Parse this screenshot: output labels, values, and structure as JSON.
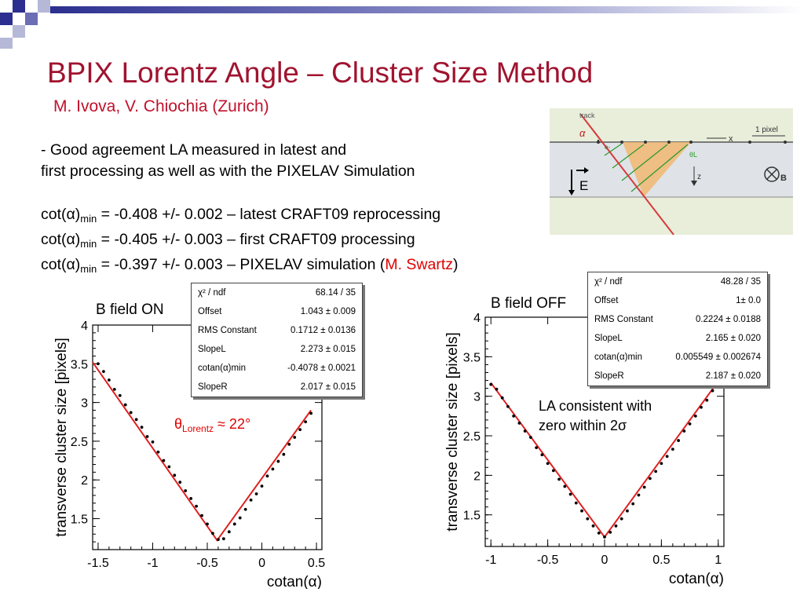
{
  "slide": {
    "title": "BPIX Lorentz Angle – Cluster Size Method",
    "subtitle": "M. Ivova, V. Chiochia (Zurich)",
    "bullet_line1": "- Good agreement LA measured in latest and",
    "bullet_line2": "first processing as well as with the PIXELAV Simulation",
    "results": [
      {
        "lhs": "cot(α)",
        "sub": "min",
        "rhs": " = -0.408 +/- 0.002 – latest CRAFT09 reprocessing"
      },
      {
        "lhs": "cot(α)",
        "sub": "min",
        "rhs": " = -0.405 +/- 0.003 – first CRAFT09 processing"
      },
      {
        "lhs": "cot(α)",
        "sub": "min",
        "rhs": " = -0.397 +/- 0.003 – PIXELAV simulation ("
      }
    ],
    "author_credit": "M. Swartz",
    "closing_paren": ")",
    "colors": {
      "title": "#a0132f",
      "accent_red": "#e00000",
      "fit_line": "#e02020",
      "header_blue": "#3a3ea8"
    }
  },
  "diagram": {
    "track_label": "track",
    "alpha_label": "α",
    "pixel_label": "1 pixel",
    "x_label": "x",
    "z_label": "z",
    "theta_label": "θL",
    "electron_label": "e-",
    "e_field_label": "E",
    "b_field_label": "B"
  },
  "left_plot": {
    "header": "B field ON",
    "annotation_theta": "θ",
    "annotation_sub": "Lorentz",
    "annotation_rest": " ≈ 22°",
    "stats": [
      {
        "name": "χ² / ndf",
        "value": "68.14 / 35"
      },
      {
        "name": "Offset",
        "value": "1.043 ± 0.009"
      },
      {
        "name": "RMS Constant",
        "value": "0.1712 ± 0.0136"
      },
      {
        "name": "SlopeL",
        "value": "2.273 ± 0.015"
      },
      {
        "name": "cotan(α)min",
        "value": "-0.4078 ± 0.0021"
      },
      {
        "name": "SlopeR",
        "value": "2.017 ± 0.015"
      }
    ]
  },
  "right_plot": {
    "header": "B field OFF",
    "note_line1": "LA consistent with",
    "note_line2": "zero within 2σ",
    "stats": [
      {
        "name": "χ² / ndf",
        "value": "48.28 / 35"
      },
      {
        "name": "Offset",
        "value": "1± 0.0"
      },
      {
        "name": "RMS Constant",
        "value": "0.2224 ± 0.0188"
      },
      {
        "name": "SlopeL",
        "value": "2.165 ± 0.020"
      },
      {
        "name": "cotan(α)min",
        "value": "0.005549 ± 0.002674"
      },
      {
        "name": "SlopeR",
        "value": "2.187 ± 0.020"
      }
    ]
  },
  "chart_data": [
    {
      "type": "scatter",
      "title": "",
      "xlabel": "cotan(α)",
      "ylabel": "transverse cluster size [pixels]",
      "xlim": [
        -1.55,
        0.55
      ],
      "ylim": [
        1.1,
        4.0
      ],
      "xticks": [
        -1.5,
        -1,
        -0.5,
        0,
        0.5
      ],
      "xtick_labels": [
        "-1.5",
        "-1",
        "-0.5",
        "0",
        "0.5"
      ],
      "yticks": [
        1.5,
        2,
        2.5,
        3,
        3.5,
        4
      ],
      "ytick_labels": [
        "1.5",
        "2",
        "2.5",
        "3",
        "3.5",
        "4"
      ],
      "fit": {
        "x": [
          -1.55,
          -0.41,
          0.45
        ],
        "y": [
          3.52,
          1.22,
          2.9
        ]
      },
      "points": {
        "x": [
          -1.5,
          -1.45,
          -1.4,
          -1.35,
          -1.3,
          -1.25,
          -1.2,
          -1.15,
          -1.1,
          -1.05,
          -1.0,
          -0.95,
          -0.9,
          -0.85,
          -0.8,
          -0.75,
          -0.7,
          -0.65,
          -0.6,
          -0.55,
          -0.5,
          -0.45,
          -0.4,
          -0.35,
          -0.3,
          -0.25,
          -0.2,
          -0.15,
          -0.1,
          -0.05,
          0.0,
          0.05,
          0.1,
          0.15,
          0.2,
          0.25,
          0.3,
          0.35,
          0.4,
          0.45
        ],
        "y": [
          3.5,
          3.4,
          3.29,
          3.17,
          3.09,
          2.97,
          2.87,
          2.78,
          2.68,
          2.56,
          2.49,
          2.36,
          2.25,
          2.17,
          2.06,
          1.97,
          1.86,
          1.76,
          1.66,
          1.54,
          1.43,
          1.31,
          1.23,
          1.24,
          1.33,
          1.43,
          1.51,
          1.62,
          1.74,
          1.82,
          1.92,
          2.05,
          2.14,
          2.24,
          2.33,
          2.46,
          2.55,
          2.65,
          2.75,
          2.86
        ]
      }
    },
    {
      "type": "scatter",
      "title": "",
      "xlabel": "cotan(α)",
      "ylabel": "transverse cluster size [pixels]",
      "xlim": [
        -1.05,
        1.05
      ],
      "ylim": [
        1.1,
        4.0
      ],
      "xticks": [
        -1,
        -0.5,
        0,
        0.5,
        1
      ],
      "xtick_labels": [
        "-1",
        "-0.5",
        "0",
        "0.5",
        "1"
      ],
      "yticks": [
        1.5,
        2,
        2.5,
        3,
        3.5,
        4
      ],
      "ytick_labels": [
        "1.5",
        "2",
        "2.5",
        "3",
        "3.5",
        "4"
      ],
      "fit": {
        "x": [
          -1.0,
          0.0,
          1.0
        ],
        "y": [
          3.17,
          1.22,
          3.19
        ]
      },
      "points": {
        "x": [
          -1.0,
          -0.95,
          -0.9,
          -0.85,
          -0.8,
          -0.75,
          -0.7,
          -0.65,
          -0.6,
          -0.55,
          -0.5,
          -0.45,
          -0.4,
          -0.35,
          -0.3,
          -0.25,
          -0.2,
          -0.15,
          -0.1,
          -0.05,
          0.0,
          0.05,
          0.1,
          0.15,
          0.2,
          0.25,
          0.3,
          0.35,
          0.4,
          0.45,
          0.5,
          0.55,
          0.6,
          0.65,
          0.7,
          0.75,
          0.8,
          0.85,
          0.9,
          0.95
        ],
        "y": [
          3.15,
          3.09,
          2.98,
          2.87,
          2.75,
          2.66,
          2.56,
          2.48,
          2.35,
          2.26,
          2.15,
          2.06,
          1.95,
          1.86,
          1.76,
          1.65,
          1.55,
          1.45,
          1.36,
          1.27,
          1.22,
          1.28,
          1.36,
          1.45,
          1.55,
          1.64,
          1.75,
          1.85,
          1.96,
          2.05,
          2.15,
          2.24,
          2.33,
          2.44,
          2.56,
          2.65,
          2.75,
          2.86,
          2.95,
          3.07
        ]
      }
    }
  ]
}
